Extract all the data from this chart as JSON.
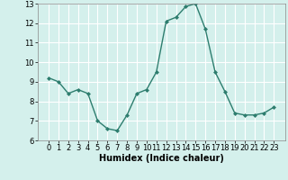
{
  "x": [
    0,
    1,
    2,
    3,
    4,
    5,
    6,
    7,
    8,
    9,
    10,
    11,
    12,
    13,
    14,
    15,
    16,
    17,
    18,
    19,
    20,
    21,
    22,
    23
  ],
  "y": [
    9.2,
    9.0,
    8.4,
    8.6,
    8.4,
    7.0,
    6.6,
    6.5,
    7.3,
    8.4,
    8.6,
    9.5,
    12.1,
    12.3,
    12.85,
    13.0,
    11.7,
    9.5,
    8.5,
    7.4,
    7.3,
    7.3,
    7.4,
    7.7
  ],
  "xlabel": "Humidex (Indice chaleur)",
  "ylim": [
    6,
    13
  ],
  "yticks": [
    6,
    7,
    8,
    9,
    10,
    11,
    12,
    13
  ],
  "xticks": [
    0,
    1,
    2,
    3,
    4,
    5,
    6,
    7,
    8,
    9,
    10,
    11,
    12,
    13,
    14,
    15,
    16,
    17,
    18,
    19,
    20,
    21,
    22,
    23
  ],
  "line_color": "#2d7d6e",
  "marker": "D",
  "marker_size": 2,
  "bg_color": "#d4f0ec",
  "grid_color": "#ffffff",
  "xlabel_fontsize": 7,
  "tick_fontsize": 6
}
